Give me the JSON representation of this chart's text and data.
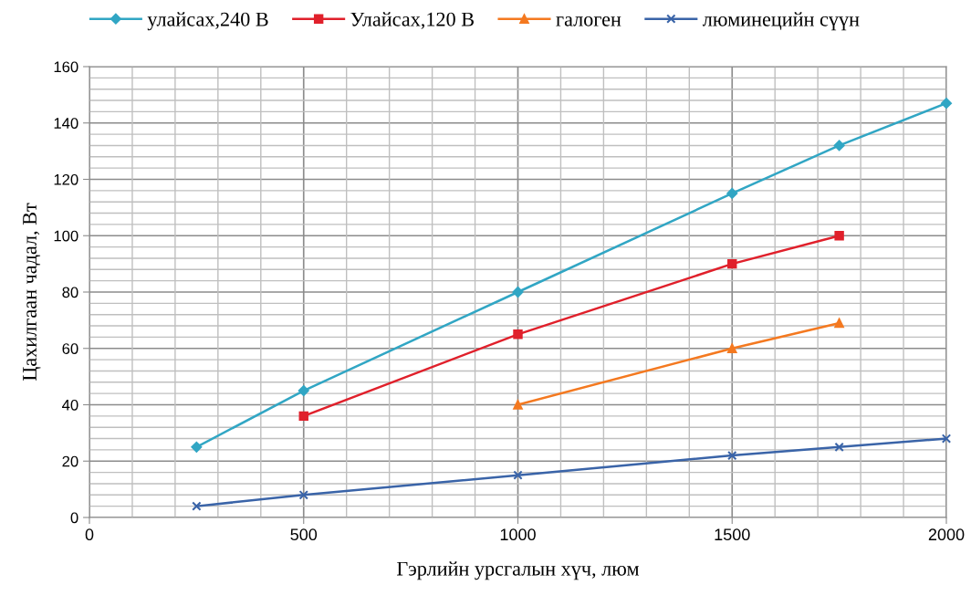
{
  "chart_data": {
    "type": "line",
    "xlabel": "Гэрлийн урсгалын хүч, люм",
    "ylabel": "Цахилгаан чадал, Вт",
    "xlim": [
      0,
      2000
    ],
    "xticks": [
      0,
      500,
      1000,
      1500,
      2000
    ],
    "ylim": [
      0,
      160
    ],
    "yticks": [
      0,
      20,
      40,
      60,
      80,
      100,
      120,
      140,
      160
    ],
    "grid": true,
    "legend": "top",
    "series": [
      {
        "name": "улайсах,240 В",
        "color": "#31a6c4",
        "marker": "diamond",
        "x": [
          250,
          500,
          1000,
          1500,
          1750,
          2000
        ],
        "values": [
          25,
          45,
          80,
          115,
          132,
          147
        ]
      },
      {
        "name": "Улайсах,120 В",
        "color": "#e0202b",
        "marker": "square",
        "x": [
          500,
          1000,
          1500,
          1750
        ],
        "values": [
          36,
          65,
          90,
          100
        ]
      },
      {
        "name": "галоген",
        "color": "#f47920",
        "marker": "triangle",
        "x": [
          1000,
          1500,
          1750
        ],
        "values": [
          40,
          60,
          69
        ]
      },
      {
        "name": "люминецийн сүүн",
        "color": "#3a64a8",
        "marker": "cross",
        "x": [
          250,
          500,
          1000,
          1500,
          1750,
          2000
        ],
        "values": [
          4,
          8,
          15,
          22,
          25,
          28
        ]
      }
    ]
  }
}
